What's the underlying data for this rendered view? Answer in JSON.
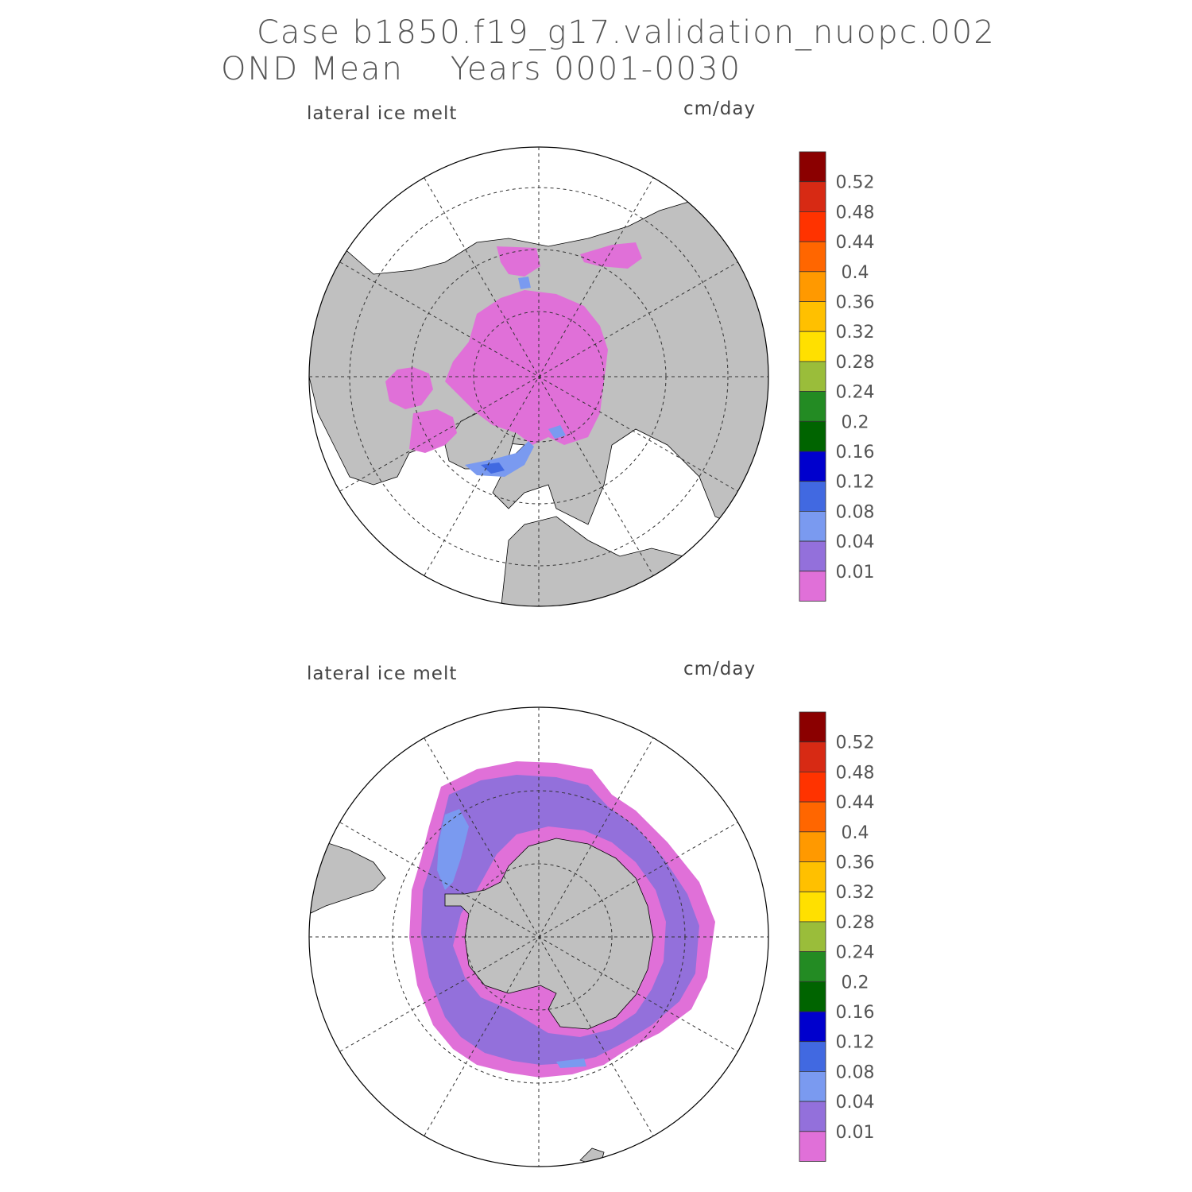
{
  "title": {
    "line1": "Case b1850.f19_g17.validation_nuopc.002",
    "line2": "OND Mean    Years 0001-0030"
  },
  "panels": [
    {
      "id": "north",
      "variable_label": "lateral ice melt",
      "units_label": "cm/day",
      "hemisphere": "northern"
    },
    {
      "id": "south",
      "variable_label": "lateral ice melt",
      "units_label": "cm/day",
      "hemisphere": "southern"
    }
  ],
  "colorbar": {
    "labels": [
      "0.52",
      "0.48",
      "0.44",
      "0.4",
      "0.36",
      "0.32",
      "0.28",
      "0.24",
      "0.2",
      "0.16",
      "0.12",
      "0.08",
      "0.04",
      "0.01"
    ],
    "colors": [
      "#8b0000",
      "#d72a14",
      "#ff3300",
      "#ff6600",
      "#ff9900",
      "#ffc000",
      "#ffe000",
      "#9abd3a",
      "#238b23",
      "#006400",
      "#0000cd",
      "#4169e1",
      "#7a9af0",
      "#9370db",
      "#e070d8"
    ]
  },
  "colors": {
    "land": "#c0c0c0",
    "ice_low": "#e070d8",
    "ice_mid": "#9370db",
    "ice_blue": "#7a9af0",
    "ice_dblue": "#4169e1"
  }
}
